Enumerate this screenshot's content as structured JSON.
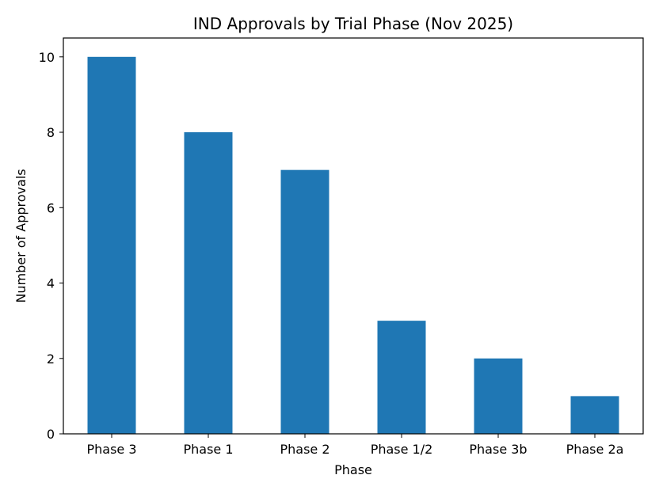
{
  "chart_data": {
    "type": "bar",
    "title": "IND Approvals by Trial Phase (Nov 2025)",
    "xlabel": "Phase",
    "ylabel": "Number of Approvals",
    "categories": [
      "Phase 3",
      "Phase 1",
      "Phase 2",
      "Phase 1/2",
      "Phase 3b",
      "Phase 2a"
    ],
    "values": [
      10,
      8,
      7,
      3,
      2,
      1
    ],
    "ylim": [
      0,
      10.5
    ],
    "yticks": [
      0,
      2,
      4,
      6,
      8,
      10
    ],
    "bar_color": "#1f77b4",
    "grid": false,
    "legend": "none"
  }
}
